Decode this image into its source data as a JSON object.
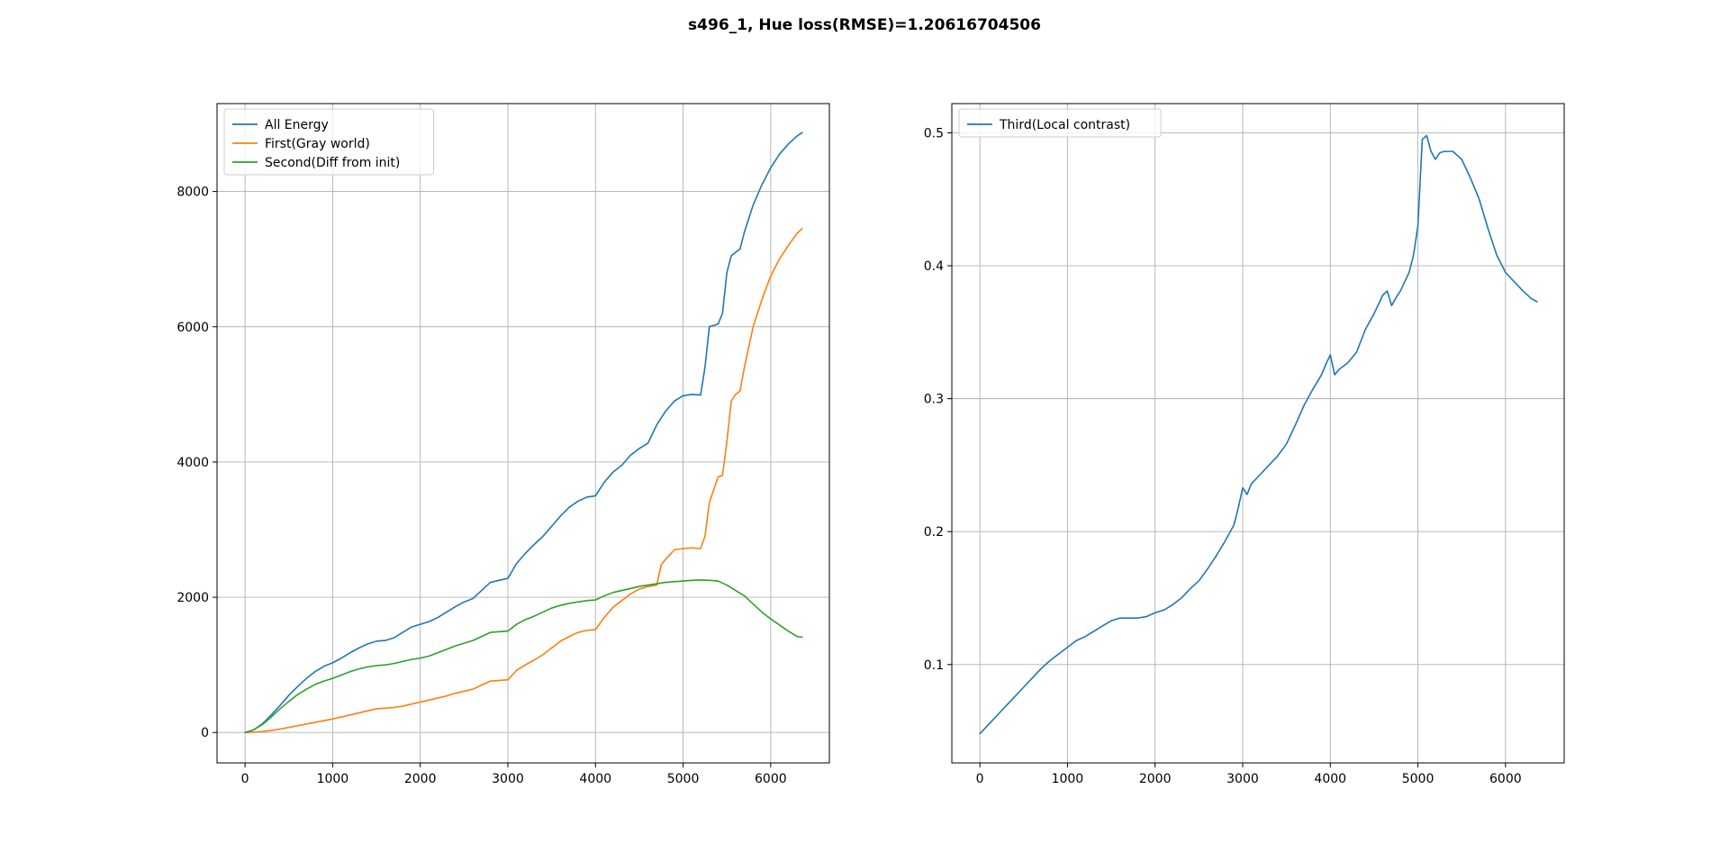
{
  "figure": {
    "suptitle": "s496_1, Hue loss(RMSE)=1.20616704506"
  },
  "chart_data": [
    {
      "type": "line",
      "title": "",
      "xlabel": "",
      "ylabel": "",
      "xlim": [
        -320,
        6670
      ],
      "ylim": [
        -450,
        9300
      ],
      "grid": true,
      "legend_position": "upper left",
      "xticks": [
        0,
        1000,
        2000,
        3000,
        4000,
        5000,
        6000
      ],
      "yticks": [
        0,
        2000,
        4000,
        6000,
        8000
      ],
      "series": [
        {
          "name": "All Energy",
          "color": "#1f77b4",
          "x": [
            0,
            100,
            200,
            300,
            400,
            500,
            600,
            700,
            800,
            900,
            1000,
            1100,
            1200,
            1300,
            1400,
            1500,
            1600,
            1700,
            1800,
            1900,
            2000,
            2100,
            2200,
            2300,
            2400,
            2500,
            2600,
            2700,
            2800,
            2900,
            3000,
            3100,
            3200,
            3300,
            3400,
            3500,
            3600,
            3700,
            3800,
            3900,
            4000,
            4100,
            4200,
            4300,
            4400,
            4500,
            4600,
            4700,
            4800,
            4900,
            5000,
            5100,
            5200,
            5250,
            5300,
            5400,
            5450,
            5500,
            5550,
            5600,
            5650,
            5700,
            5800,
            5900,
            6000,
            6100,
            6200,
            6300,
            6360
          ],
          "y": [
            0,
            40,
            130,
            260,
            400,
            550,
            680,
            800,
            900,
            980,
            1030,
            1100,
            1180,
            1250,
            1310,
            1350,
            1360,
            1400,
            1480,
            1560,
            1600,
            1640,
            1700,
            1780,
            1860,
            1930,
            1980,
            2100,
            2220,
            2250,
            2280,
            2500,
            2650,
            2780,
            2900,
            3050,
            3200,
            3330,
            3420,
            3480,
            3500,
            3700,
            3850,
            3950,
            4100,
            4200,
            4280,
            4550,
            4750,
            4900,
            4980,
            5000,
            4990,
            5400,
            6000,
            6040,
            6200,
            6800,
            7050,
            7100,
            7150,
            7400,
            7800,
            8100,
            8350,
            8550,
            8700,
            8820,
            8870
          ]
        },
        {
          "name": "First(Gray world)",
          "color": "#ff7f0e",
          "x": [
            0,
            100,
            200,
            300,
            400,
            500,
            600,
            700,
            800,
            900,
            1000,
            1100,
            1200,
            1300,
            1400,
            1500,
            1600,
            1700,
            1800,
            1900,
            2000,
            2100,
            2200,
            2300,
            2400,
            2500,
            2600,
            2700,
            2800,
            2900,
            3000,
            3100,
            3200,
            3300,
            3400,
            3500,
            3600,
            3700,
            3800,
            3900,
            4000,
            4100,
            4200,
            4300,
            4400,
            4500,
            4600,
            4700,
            4750,
            4800,
            4900,
            5000,
            5100,
            5200,
            5250,
            5300,
            5400,
            5450,
            5500,
            5550,
            5600,
            5650,
            5700,
            5800,
            5900,
            6000,
            6100,
            6200,
            6300,
            6360
          ],
          "y": [
            0,
            5,
            15,
            30,
            50,
            75,
            100,
            125,
            150,
            175,
            200,
            230,
            260,
            290,
            320,
            350,
            360,
            370,
            390,
            420,
            450,
            480,
            510,
            540,
            580,
            610,
            640,
            700,
            760,
            770,
            780,
            920,
            1000,
            1070,
            1150,
            1250,
            1350,
            1420,
            1480,
            1510,
            1520,
            1700,
            1850,
            1950,
            2050,
            2120,
            2160,
            2180,
            2480,
            2560,
            2700,
            2720,
            2730,
            2720,
            2900,
            3400,
            3780,
            3800,
            4300,
            4900,
            5000,
            5050,
            5400,
            6000,
            6400,
            6750,
            7000,
            7200,
            7380,
            7450
          ]
        },
        {
          "name": "Second(Diff from init)",
          "color": "#2ca02c",
          "x": [
            0,
            100,
            200,
            300,
            400,
            500,
            600,
            700,
            800,
            900,
            1000,
            1100,
            1200,
            1300,
            1400,
            1500,
            1600,
            1700,
            1800,
            1900,
            2000,
            2100,
            2200,
            2300,
            2400,
            2500,
            2600,
            2700,
            2800,
            2900,
            3000,
            3100,
            3200,
            3300,
            3400,
            3500,
            3600,
            3700,
            3800,
            3900,
            4000,
            4100,
            4200,
            4300,
            4400,
            4500,
            4600,
            4700,
            4800,
            4900,
            5000,
            5100,
            5200,
            5300,
            5400,
            5500,
            5600,
            5700,
            5800,
            5900,
            6000,
            6100,
            6200,
            6300,
            6360
          ],
          "y": [
            0,
            40,
            120,
            230,
            350,
            460,
            560,
            640,
            710,
            760,
            800,
            850,
            900,
            940,
            970,
            990,
            1000,
            1020,
            1050,
            1080,
            1100,
            1130,
            1180,
            1230,
            1280,
            1320,
            1360,
            1420,
            1480,
            1490,
            1500,
            1600,
            1670,
            1720,
            1780,
            1840,
            1880,
            1910,
            1930,
            1950,
            1960,
            2020,
            2070,
            2100,
            2130,
            2160,
            2180,
            2200,
            2220,
            2230,
            2240,
            2250,
            2255,
            2250,
            2240,
            2180,
            2100,
            2020,
            1900,
            1780,
            1680,
            1590,
            1500,
            1420,
            1410
          ]
        }
      ]
    },
    {
      "type": "line",
      "title": "",
      "xlabel": "",
      "ylabel": "",
      "xlim": [
        -320,
        6670
      ],
      "ylim": [
        0.026,
        0.522
      ],
      "grid": true,
      "legend_position": "upper left",
      "xticks": [
        0,
        1000,
        2000,
        3000,
        4000,
        5000,
        6000
      ],
      "yticks": [
        0.1,
        0.2,
        0.3,
        0.4,
        0.5
      ],
      "series": [
        {
          "name": "Third(Local contrast)",
          "color": "#1f77b4",
          "x": [
            0,
            100,
            200,
            300,
            400,
            500,
            600,
            700,
            800,
            900,
            1000,
            1100,
            1200,
            1300,
            1400,
            1500,
            1600,
            1700,
            1800,
            1900,
            2000,
            2100,
            2200,
            2300,
            2400,
            2500,
            2600,
            2700,
            2800,
            2900,
            2950,
            3000,
            3050,
            3100,
            3200,
            3300,
            3400,
            3500,
            3600,
            3700,
            3800,
            3900,
            3950,
            4000,
            4050,
            4100,
            4200,
            4300,
            4400,
            4500,
            4600,
            4650,
            4700,
            4750,
            4800,
            4900,
            4950,
            5000,
            5050,
            5100,
            5150,
            5200,
            5250,
            5300,
            5400,
            5500,
            5600,
            5700,
            5800,
            5900,
            6000,
            6100,
            6200,
            6300,
            6360
          ],
          "y": [
            0.048,
            0.055,
            0.062,
            0.069,
            0.076,
            0.083,
            0.09,
            0.097,
            0.103,
            0.108,
            0.113,
            0.118,
            0.121,
            0.125,
            0.129,
            0.133,
            0.135,
            0.135,
            0.135,
            0.136,
            0.139,
            0.141,
            0.145,
            0.15,
            0.157,
            0.163,
            0.172,
            0.182,
            0.193,
            0.205,
            0.218,
            0.233,
            0.228,
            0.236,
            0.243,
            0.25,
            0.257,
            0.266,
            0.28,
            0.295,
            0.307,
            0.318,
            0.326,
            0.333,
            0.318,
            0.322,
            0.327,
            0.335,
            0.352,
            0.364,
            0.378,
            0.381,
            0.37,
            0.376,
            0.381,
            0.395,
            0.408,
            0.43,
            0.495,
            0.498,
            0.486,
            0.48,
            0.485,
            0.486,
            0.486,
            0.48,
            0.466,
            0.45,
            0.428,
            0.408,
            0.395,
            0.388,
            0.381,
            0.375,
            0.373
          ]
        }
      ]
    }
  ]
}
